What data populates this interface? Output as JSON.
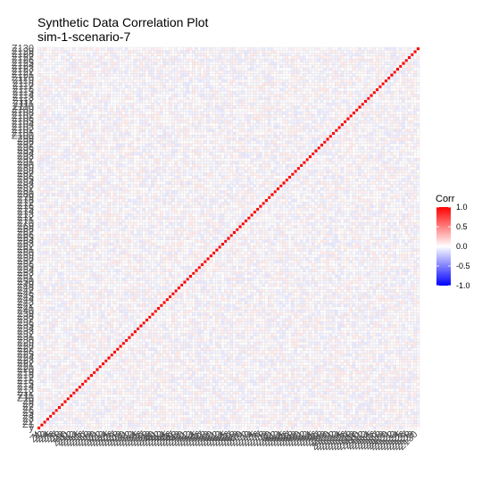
{
  "chart_data": {
    "type": "heatmap",
    "title": "Synthetic Data Correlation Plot",
    "subtitle": "sim-1-scenario-7",
    "variables_count": 131,
    "variables_note_first": "y",
    "variables_pattern": "Z1 ... Z130",
    "xlabel": "",
    "ylabel": "",
    "diagonal_value": 1.0,
    "off_diagonal_range": [
      -0.1,
      0.1
    ],
    "legend": {
      "title": "Corr",
      "placement": "right",
      "ticks": [
        "1.0",
        "0.5",
        "0.0",
        "-0.5",
        "-1.0"
      ],
      "tick_values": [
        1.0,
        0.5,
        0.0,
        -0.5,
        -1.0
      ],
      "range": [
        -1.0,
        1.0
      ]
    },
    "colors": {
      "high": "#ff0000",
      "mid": "#ffffff",
      "low": "#0000ff",
      "grid": "#d9d9d9"
    }
  }
}
